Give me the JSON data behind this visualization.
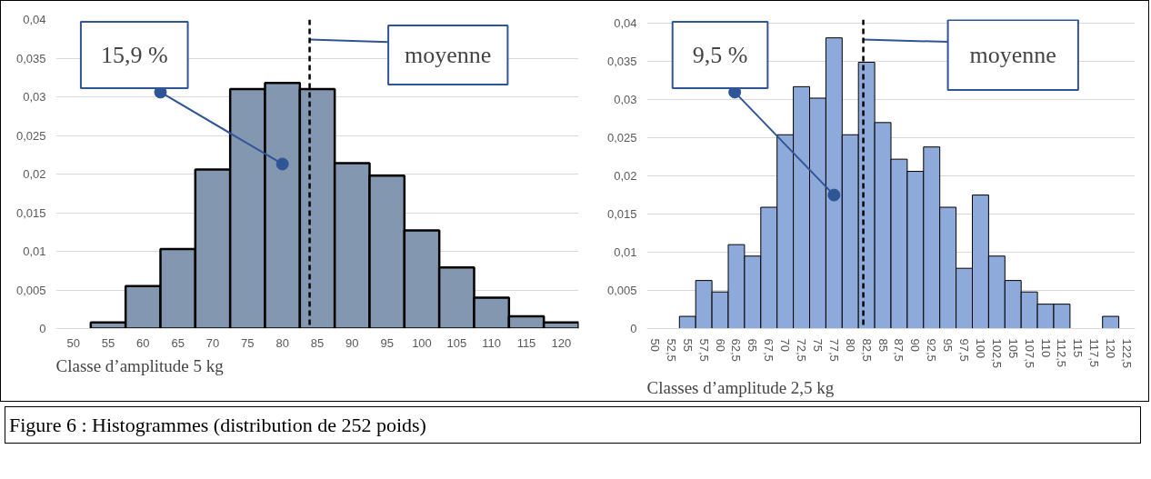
{
  "chart_data": [
    {
      "type": "histogram",
      "subtitle": "Classe d’amplitude 5 kg",
      "color": "#8497b0",
      "bins": [
        47.5,
        52.5,
        57.5,
        62.5,
        67.5,
        72.5,
        77.5,
        82.5,
        87.5,
        92.5,
        97.5,
        102.5,
        107.5,
        112.5,
        117.5,
        122.5
      ],
      "values": [
        0,
        0.0008,
        0.0055,
        0.0103,
        0.0206,
        0.031,
        0.0318,
        0.031,
        0.0214,
        0.0198,
        0.0127,
        0.0079,
        0.004,
        0.0016,
        0.0008
      ],
      "xlim": [
        47.5,
        122.5
      ],
      "xticks": [
        50,
        55,
        60,
        65,
        70,
        75,
        80,
        85,
        90,
        95,
        100,
        105,
        110,
        115,
        120
      ],
      "ylim": [
        0,
        0.04
      ],
      "yticks": [
        0,
        {
          "value": 0.005,
          "label": "0,005"
        },
        {
          "value": 0.01,
          "label": "0,01"
        },
        {
          "value": 0.015,
          "label": "0,015"
        },
        {
          "value": 0.02,
          "label": "0,02"
        },
        {
          "value": 0.025,
          "label": "0,025"
        },
        {
          "value": 0.03,
          "label": "0,03"
        },
        {
          "value": 0.035,
          "label": "0,035"
        },
        {
          "value": 0.04,
          "label": "0,04"
        }
      ],
      "grid": "y",
      "ref_lines": [
        {
          "axis": "x",
          "value": 83.9,
          "label": "moyenne",
          "line_style": "dashed",
          "color": "#000000"
        }
      ],
      "annotations": [
        {
          "text": "15,9 %",
          "x": 80,
          "y": 0.0213
        },
        "Figure 6 : Histogrammes (distribution de 252 poids)"
      ]
    },
    {
      "type": "histogram",
      "subtitle": "Classes d’amplitude 2,5 kg",
      "color": "#8eaadb",
      "bins": [
        48.75,
        51.25,
        53.75,
        56.25,
        58.75,
        61.25,
        63.75,
        66.25,
        68.75,
        71.25,
        73.75,
        76.25,
        78.75,
        81.25,
        83.75,
        86.25,
        88.75,
        91.25,
        93.75,
        96.25,
        98.75,
        101.25,
        103.75,
        106.25,
        108.75,
        111.25,
        113.75,
        116.25,
        118.75,
        121.25,
        123.75
      ],
      "values": [
        0,
        0,
        0.0016,
        0.0063,
        0.0048,
        0.011,
        0.0095,
        0.0159,
        0.0254,
        0.0317,
        0.0302,
        0.0381,
        0.0254,
        0.0349,
        0.027,
        0.0222,
        0.0206,
        0.0238,
        0.0159,
        0.0079,
        0.0175,
        0.0095,
        0.0063,
        0.0048,
        0.0032,
        0.0032,
        0,
        0,
        0.0016,
        0
      ],
      "xlim": [
        48.75,
        123.75
      ],
      "xticks": [
        50,
        {
          "value": 52.5,
          "label": "52,5"
        },
        55,
        {
          "value": 57.5,
          "label": "57,5"
        },
        60,
        {
          "value": 62.5,
          "label": "62,5"
        },
        65,
        {
          "value": 67.5,
          "label": "67,5"
        },
        70,
        {
          "value": 72.5,
          "label": "72,5"
        },
        75,
        {
          "value": 77.5,
          "label": "77,5"
        },
        80,
        {
          "value": 82.5,
          "label": "82,5"
        },
        85,
        {
          "value": 87.5,
          "label": "87,5"
        },
        90,
        {
          "value": 92.5,
          "label": "92,5"
        },
        95,
        {
          "value": 97.5,
          "label": "97,5"
        },
        100,
        {
          "value": 102.5,
          "label": "102,5"
        },
        105,
        {
          "value": 107.5,
          "label": "107,5"
        },
        110,
        {
          "value": 112.5,
          "label": "112,5"
        },
        115,
        {
          "value": 117.5,
          "label": "117,5"
        },
        120,
        {
          "value": 122.5,
          "label": "122,5"
        }
      ],
      "ylim": [
        0,
        0.0405
      ],
      "yticks": [
        0,
        {
          "value": 0.005,
          "label": "0,005"
        },
        {
          "value": 0.01,
          "label": "0,01"
        },
        {
          "value": 0.015,
          "label": "0,015"
        },
        {
          "value": 0.02,
          "label": "0,02"
        },
        {
          "value": 0.025,
          "label": "0,025"
        },
        {
          "value": 0.03,
          "label": "0,03"
        },
        {
          "value": 0.035,
          "label": "0,035"
        },
        {
          "value": 0.04,
          "label": "0,04"
        }
      ],
      "grid": "y",
      "ref_lines": [
        {
          "axis": "x",
          "value": 82.0,
          "label": "moyenne",
          "line_style": "dashed",
          "color": "#000000"
        }
      ],
      "annotations": [
        {
          "text": "9,5 %",
          "x": 77.5,
          "y": 0.0175
        }
      ]
    }
  ]
}
